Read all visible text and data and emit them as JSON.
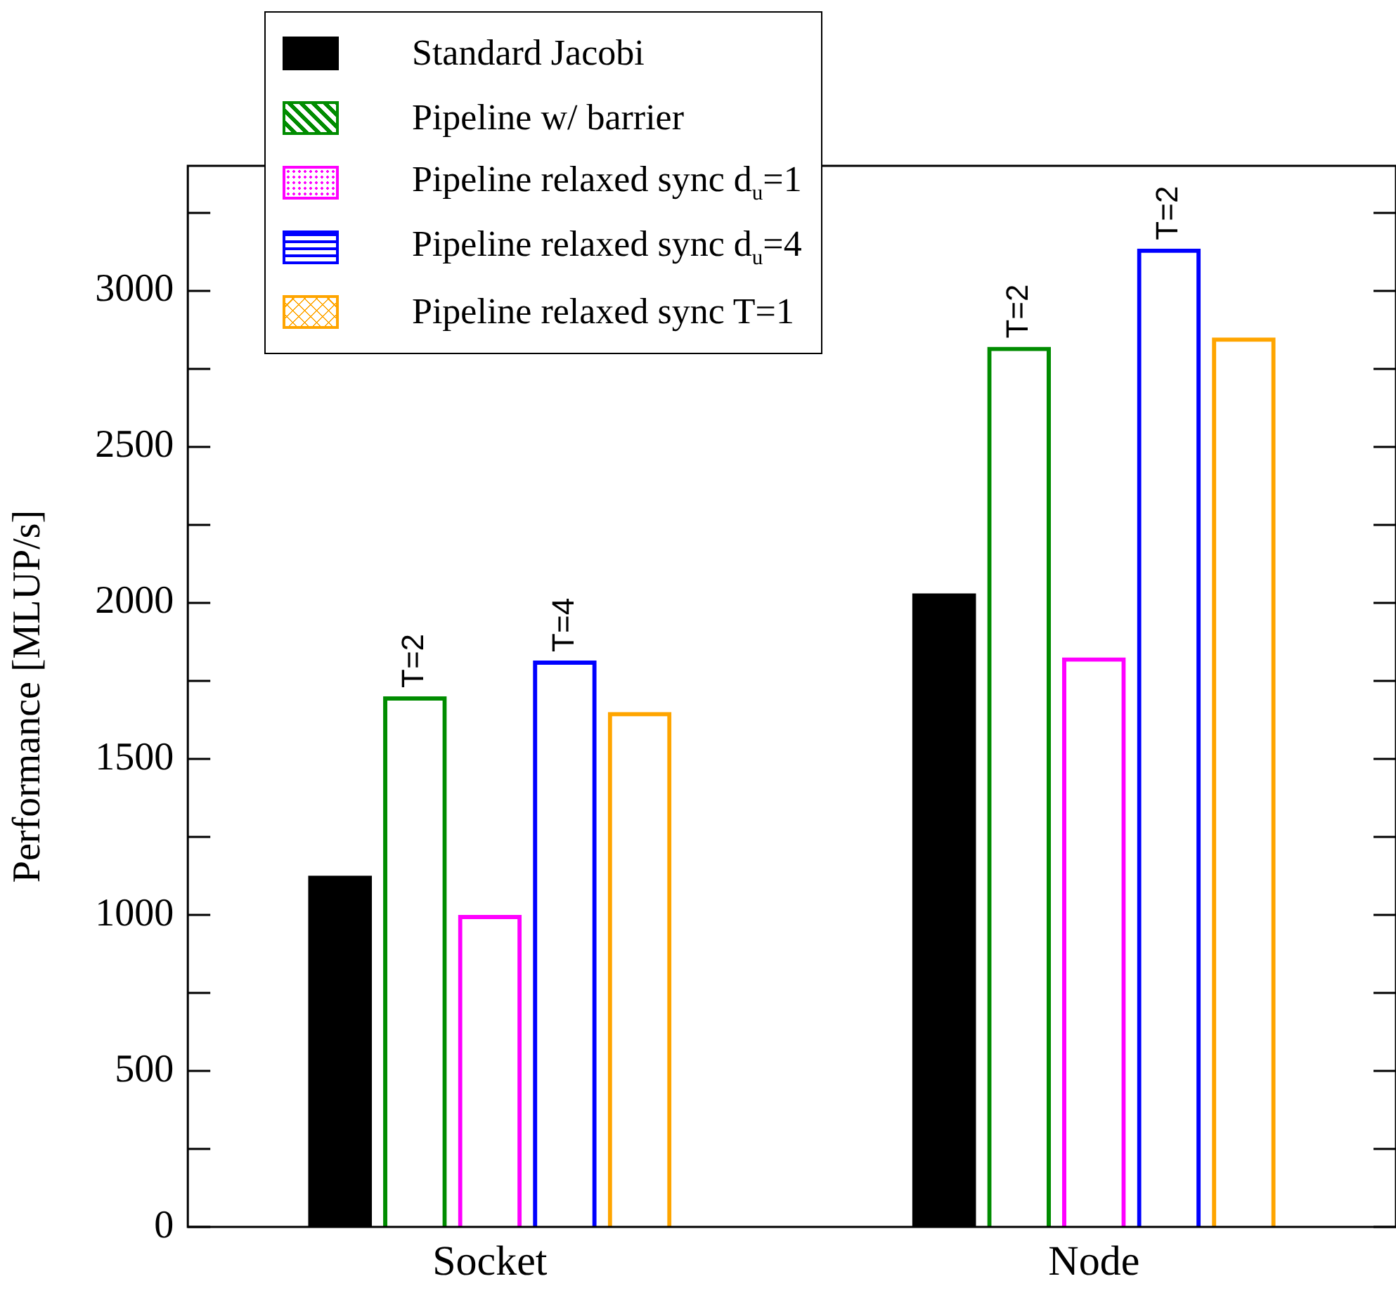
{
  "chart_data": {
    "type": "bar",
    "ylabel": "Performance [MLUP/s]",
    "categories": [
      "Socket",
      "Node"
    ],
    "series": [
      {
        "name": "Standard Jacobi",
        "color": "#000000",
        "values": [
          1125,
          2030
        ]
      },
      {
        "name": "Pipeline w/ barrier",
        "color": "#008c00",
        "values": [
          1700,
          2820
        ]
      },
      {
        "name": "Pipeline relaxed sync d$_{u}$=1",
        "color": "#ff00ff",
        "values": [
          1000,
          1825
        ]
      },
      {
        "name": "Pipeline relaxed sync d$_{u}$=4",
        "color": "#0000ff",
        "values": [
          1815,
          3135
        ]
      },
      {
        "name": "Pipeline relaxed sync T=1",
        "color": "#ffa500",
        "values": [
          1650,
          2850
        ]
      }
    ],
    "ylim": [
      0,
      3400
    ],
    "yticks": [
      0,
      {
        "value": 250,
        "label": null
      },
      500,
      {
        "value": 750,
        "label": null
      },
      1000,
      {
        "value": 1250,
        "label": null
      },
      1500,
      {
        "value": 1750,
        "label": null
      },
      2000,
      {
        "value": 2250,
        "label": null
      },
      2500,
      {
        "value": 2750,
        "label": null
      },
      3000,
      {
        "value": 3250,
        "label": null
      }
    ],
    "annotations": [
      "T=2",
      "T=4",
      "T=2",
      "T=2"
    ],
    "legend": "top left"
  }
}
